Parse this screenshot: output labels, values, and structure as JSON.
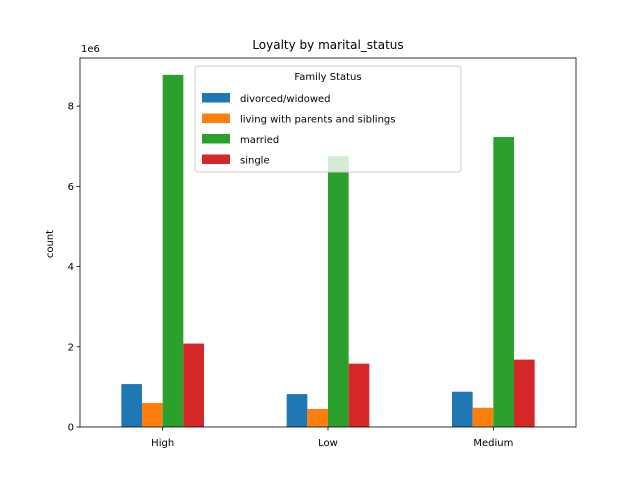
{
  "chart_data": {
    "type": "bar",
    "title": "Loyalty by marital_status",
    "xlabel": "",
    "ylabel": "count",
    "y_offset_label": "1e6",
    "categories": [
      "High",
      "Low",
      "Medium"
    ],
    "series": [
      {
        "name": "divorced/widowed",
        "color": "#1f77b4",
        "values": [
          1070000,
          820000,
          880000
        ]
      },
      {
        "name": "living with parents and siblings",
        "color": "#ff7f0e",
        "values": [
          600000,
          450000,
          480000
        ]
      },
      {
        "name": "married",
        "color": "#2ca02c",
        "values": [
          8780000,
          6750000,
          7230000
        ]
      },
      {
        "name": "single",
        "color": "#d62728",
        "values": [
          2080000,
          1580000,
          1680000
        ]
      }
    ],
    "ylim": [
      0,
      9200000
    ],
    "yticks": [
      0,
      2000000,
      4000000,
      6000000,
      8000000
    ],
    "ytick_labels": [
      "0",
      "2",
      "4",
      "6",
      "8"
    ],
    "legend": {
      "title": "Family Status",
      "placement": "top-center"
    },
    "grid": false
  }
}
